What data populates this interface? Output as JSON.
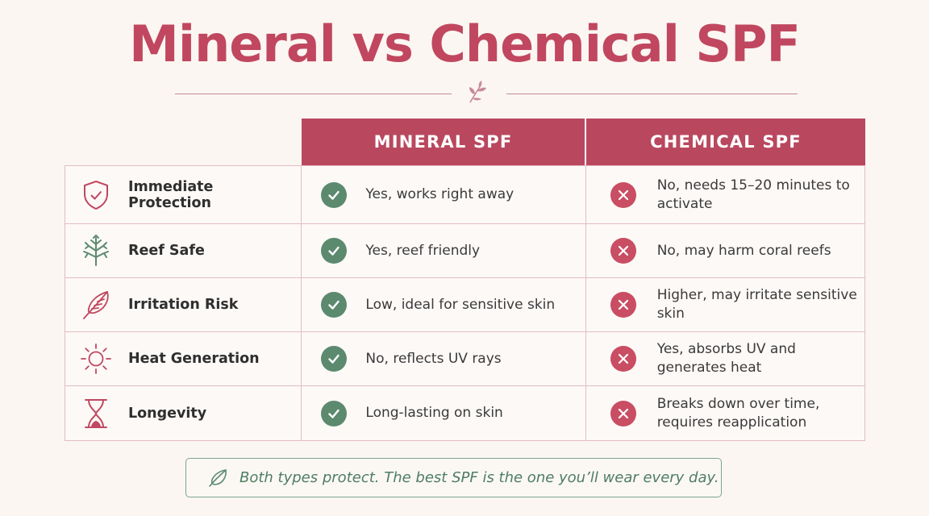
{
  "title": "Mineral vs Chemical SPF",
  "colors": {
    "accent": "#c0475f",
    "header_bg": "#b9485f",
    "check": "#5b8a6f",
    "cross": "#c94d63",
    "note_border": "#7da58a",
    "background": "#fbf6f2"
  },
  "columns": {
    "mineral": "MINERAL SPF",
    "chemical": "CHEMICAL SPF"
  },
  "rows": [
    {
      "icon": "shield-check-icon",
      "feature": "Immediate Protection",
      "mineral": "Yes, works right away",
      "chemical": "No, needs 15–20 minutes to activate"
    },
    {
      "icon": "coral-icon",
      "feature": "Reef Safe",
      "mineral": "Yes, reef friendly",
      "chemical": "No, may harm coral reefs"
    },
    {
      "icon": "feather-icon",
      "feature": "Irritation Risk",
      "mineral": "Low, ideal for sensitive skin",
      "chemical": "Higher, may irritate sensitive skin"
    },
    {
      "icon": "sun-icon",
      "feature": "Heat Generation",
      "mineral": "No, reflects UV rays",
      "chemical": "Yes, absorbs UV and generates heat"
    },
    {
      "icon": "hourglass-icon",
      "feature": "Longevity",
      "mineral": "Long-lasting on skin",
      "chemical": "Breaks down over time, requires reapplication"
    }
  ],
  "note": "Both types protect. The best SPF is the one you’ll wear every day."
}
